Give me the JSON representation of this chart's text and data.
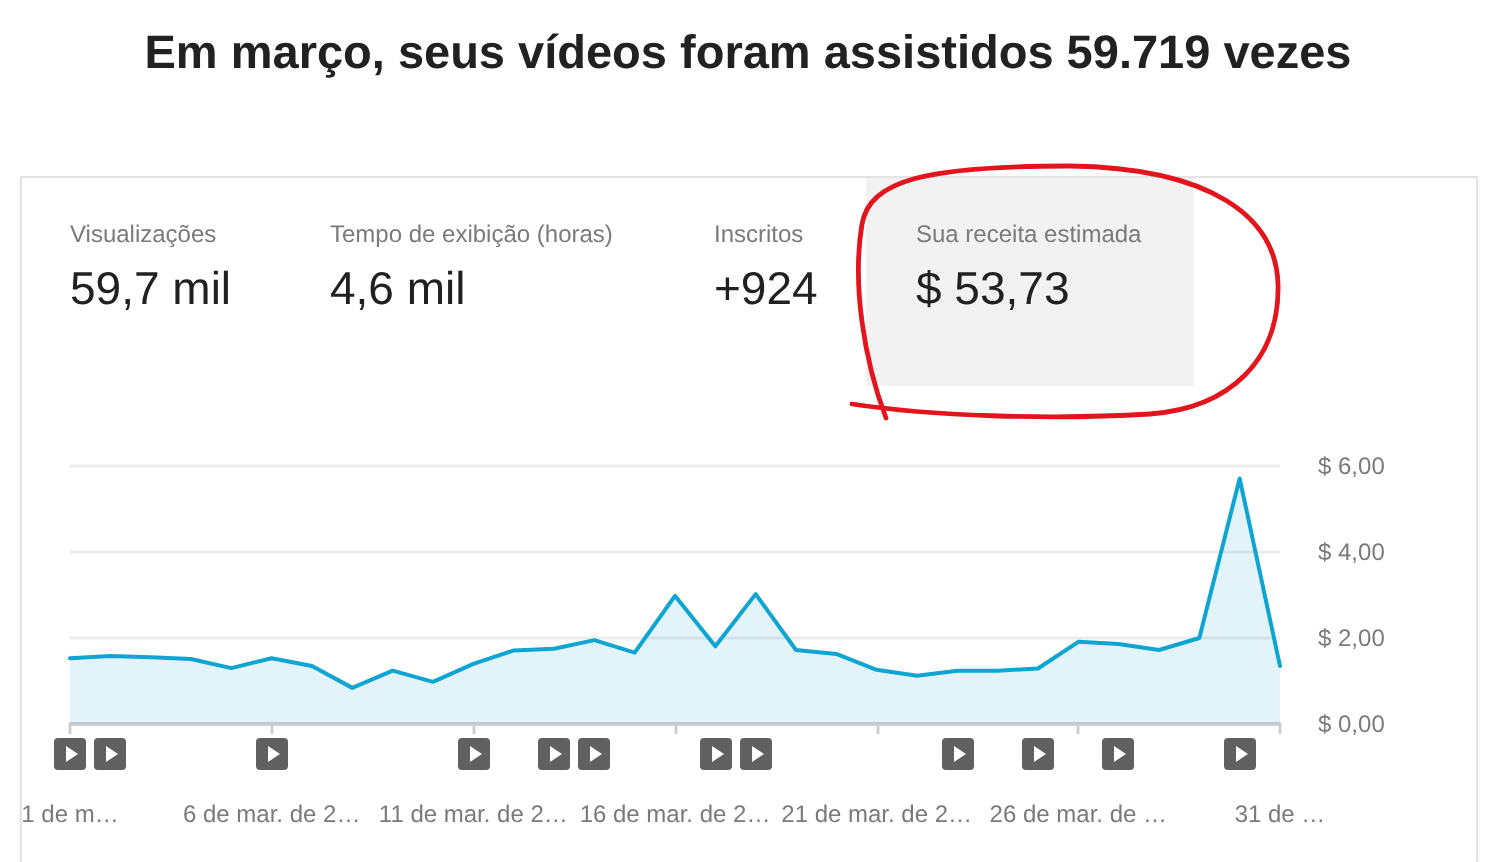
{
  "chart_data": [
    {
      "type": "other",
      "title": "Em março, seus vídeos foram assistidos 59.719 vezes",
      "annotations": [
        "Visualizações",
        "59,7 mil",
        "Tempo de exibição (horas)",
        "4,6 mil",
        "Inscritos",
        "+924",
        "Sua receita estimada",
        "$ 53,73"
      ]
    },
    {
      "type": "area",
      "categories": [
        "1 de m…",
        null,
        null,
        null,
        null,
        "6 de mar. de 2…",
        null,
        null,
        null,
        null,
        "11 de mar. de 2…",
        null,
        null,
        null,
        null,
        "16 de mar. de 2…",
        null,
        null,
        null,
        null,
        "21 de mar. de 2…",
        null,
        null,
        null,
        null,
        "26 de mar. de …",
        null,
        null,
        null,
        null,
        "31 de …"
      ],
      "values": [
        1.53,
        1.58,
        1.55,
        1.51,
        1.3,
        1.53,
        1.35,
        0.84,
        1.24,
        0.98,
        1.4,
        1.71,
        1.75,
        1.95,
        1.66,
        2.98,
        1.81,
        3.02,
        1.72,
        1.63,
        1.26,
        1.12,
        1.24,
        1.24,
        1.29,
        1.91,
        1.86,
        1.72,
        2.0,
        5.71,
        1.35
      ],
      "color": "#0ea5d2",
      "ylim": [
        0,
        6
      ],
      "yticks": [
        {
          "value": 0,
          "label": "$ 0,00"
        },
        {
          "value": 2,
          "label": "$ 2,00"
        },
        {
          "value": 4,
          "label": "$ 4,00"
        },
        {
          "value": 6,
          "label": "$ 6,00"
        }
      ],
      "grid": "y"
    }
  ]
}
